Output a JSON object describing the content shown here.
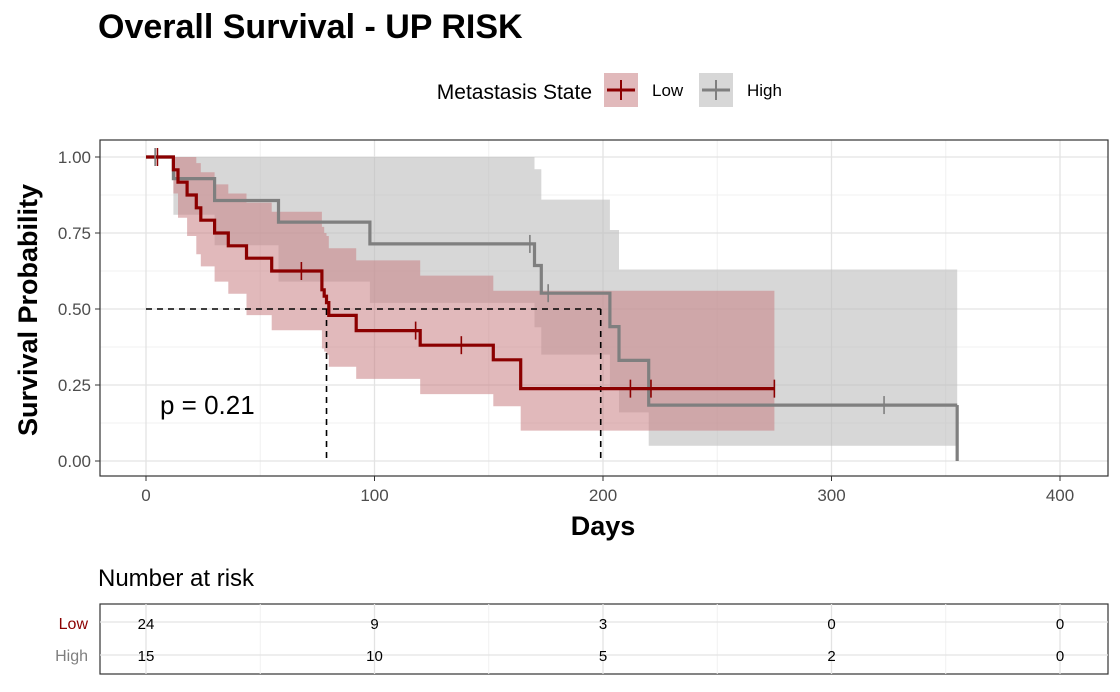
{
  "title": "Overall Survival - UP RISK",
  "legend": {
    "title": "Metastasis State",
    "items": [
      {
        "label": "Low",
        "color": "#8b0000"
      },
      {
        "label": "High",
        "color": "#7f7f7f"
      }
    ]
  },
  "pvalue": "p = 0.21",
  "colors": {
    "low_line": "#8b0000",
    "low_band": "#c97f84",
    "high_line": "#7f7f7f",
    "high_band": "#bdbdbd"
  },
  "chart_data": [
    {
      "type": "line",
      "title": "Overall Survival - UP RISK",
      "xlabel": "Days",
      "ylabel": "Survival Probability",
      "xlim": [
        -20,
        410
      ],
      "ylim": [
        -0.05,
        1.05
      ],
      "x_ticks": [
        0,
        100,
        200,
        300,
        400
      ],
      "y_ticks": [
        0,
        0.25,
        0.5,
        0.75,
        1.0
      ],
      "x_tick_labels": [
        "0",
        "100",
        "200",
        "300",
        "400"
      ],
      "y_tick_labels": [
        "0.00",
        "0.25",
        "0.50",
        "0.75",
        "1.00"
      ],
      "grid": true,
      "legend_position": "top",
      "median_line_y": 0.5,
      "series": [
        {
          "name": "Low",
          "color": "#8b0000",
          "band_color": "#c97f84",
          "step_x": [
            0,
            10,
            12,
            14,
            17,
            18,
            22,
            24,
            30,
            36,
            44,
            55,
            58,
            66,
            72,
            77,
            78,
            79,
            80,
            92,
            120,
            152,
            164,
            275
          ],
          "step_y": [
            1.0,
            1.0,
            0.958,
            0.917,
            0.917,
            0.875,
            0.833,
            0.792,
            0.75,
            0.708,
            0.667,
            0.625,
            0.625,
            0.625,
            0.625,
            0.563,
            0.542,
            0.521,
            0.479,
            0.429,
            0.381,
            0.333,
            0.238,
            0.238
          ],
          "lower": [
            1.0,
            1.0,
            0.88,
            0.8,
            0.8,
            0.74,
            0.68,
            0.64,
            0.59,
            0.55,
            0.48,
            0.43,
            0.43,
            0.43,
            0.43,
            0.37,
            0.36,
            0.35,
            0.31,
            0.27,
            0.22,
            0.18,
            0.1,
            0.1
          ],
          "upper": [
            1.0,
            1.0,
            1.0,
            1.0,
            1.0,
            1.0,
            0.98,
            0.95,
            0.91,
            0.88,
            0.85,
            0.82,
            0.82,
            0.82,
            0.82,
            0.77,
            0.75,
            0.74,
            0.7,
            0.66,
            0.61,
            0.56,
            0.56,
            0.56
          ],
          "censor_x": [
            5,
            68,
            118,
            138,
            212,
            221,
            275
          ],
          "censor_y": [
            1.0,
            0.625,
            0.429,
            0.381,
            0.238,
            0.238,
            0.238
          ],
          "median_x": 79
        },
        {
          "name": "High",
          "color": "#7f7f7f",
          "band_color": "#bdbdbd",
          "step_x": [
            0,
            10,
            12,
            30,
            58,
            98,
            170,
            173,
            198,
            203,
            207,
            220,
            355
          ],
          "step_y": [
            1.0,
            1.0,
            0.929,
            0.857,
            0.786,
            0.714,
            0.643,
            0.552,
            0.552,
            0.442,
            0.331,
            0.184,
            0.184
          ],
          "lower": [
            1.0,
            1.0,
            0.81,
            0.71,
            0.59,
            0.52,
            0.44,
            0.35,
            0.35,
            0.24,
            0.16,
            0.05,
            0.05
          ],
          "upper": [
            1.0,
            1.0,
            1.0,
            1.0,
            1.0,
            1.0,
            0.96,
            0.86,
            0.86,
            0.76,
            0.63,
            0.63,
            0.63
          ],
          "censor_x": [
            4,
            168,
            176,
            323
          ],
          "censor_y": [
            1.0,
            0.714,
            0.552,
            0.184
          ],
          "drop_x": 355,
          "median_x": 199
        }
      ]
    },
    {
      "type": "table",
      "title": "Number at risk",
      "columns": [
        0,
        100,
        200,
        300,
        400
      ],
      "rows": [
        {
          "name": "Low",
          "color": "#8b0000",
          "values": [
            "24",
            "9",
            "3",
            "0",
            "0"
          ]
        },
        {
          "name": "High",
          "color": "#7f7f7f",
          "values": [
            "15",
            "10",
            "5",
            "2",
            "0"
          ]
        }
      ]
    }
  ]
}
